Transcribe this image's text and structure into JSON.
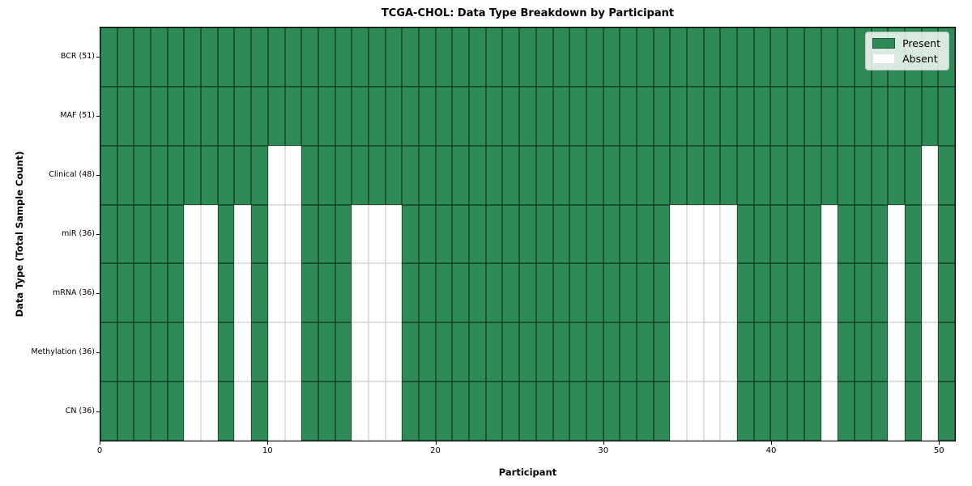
{
  "figure": {
    "title": "TCGA-CHOL: Data Type Breakdown by Participant"
  },
  "axes": {
    "xlabel": "Participant",
    "ylabel": "Data Type (Total Sample Count)",
    "xticks": [
      0,
      10,
      20,
      30,
      40,
      50
    ]
  },
  "legend": {
    "items": [
      {
        "label": "Present",
        "color": "#2E8B57",
        "border": "rgba(0,0,0,0.35)"
      },
      {
        "label": "Absent",
        "color": "#FFFFFF",
        "border": "rgba(0,0,0,0.12)"
      }
    ]
  },
  "colors": {
    "present": "#2E8B57",
    "absent": "#FFFFFF",
    "plot_border": "#000000",
    "background": "#FFFFFF"
  },
  "chart_data": {
    "type": "heatmap",
    "title": "TCGA-CHOL: Data Type Breakdown by Participant",
    "xlabel": "Participant",
    "ylabel": "Data Type (Total Sample Count)",
    "xticks": [
      0,
      10,
      20,
      30,
      40,
      50
    ],
    "x_range": [
      0,
      51
    ],
    "n_participants": 51,
    "legend_entries": [
      "Present",
      "Absent"
    ],
    "legend_position": "upper right",
    "grid": true,
    "rows": [
      {
        "label": "BCR (51)",
        "data_type": "BCR",
        "present_count": 51,
        "absent_participants": []
      },
      {
        "label": "MAF (51)",
        "data_type": "MAF",
        "present_count": 51,
        "absent_participants": []
      },
      {
        "label": "Clinical (48)",
        "data_type": "Clinical",
        "present_count": 48,
        "absent_participants": [
          10,
          11,
          49
        ]
      },
      {
        "label": "miR (36)",
        "data_type": "miR",
        "present_count": 36,
        "absent_participants": [
          5,
          6,
          8,
          10,
          11,
          15,
          16,
          17,
          34,
          35,
          36,
          37,
          43,
          47,
          49
        ]
      },
      {
        "label": "mRNA (36)",
        "data_type": "mRNA",
        "present_count": 36,
        "absent_participants": [
          5,
          6,
          8,
          10,
          11,
          15,
          16,
          17,
          34,
          35,
          36,
          37,
          43,
          47,
          49
        ]
      },
      {
        "label": "Methylation (36)",
        "data_type": "Methylation",
        "present_count": 36,
        "absent_participants": [
          5,
          6,
          8,
          10,
          11,
          15,
          16,
          17,
          34,
          35,
          36,
          37,
          43,
          47,
          49
        ]
      },
      {
        "label": "CN (36)",
        "data_type": "CN",
        "present_count": 36,
        "absent_participants": [
          5,
          6,
          8,
          10,
          11,
          15,
          16,
          17,
          34,
          35,
          36,
          37,
          43,
          47,
          49
        ]
      }
    ]
  }
}
